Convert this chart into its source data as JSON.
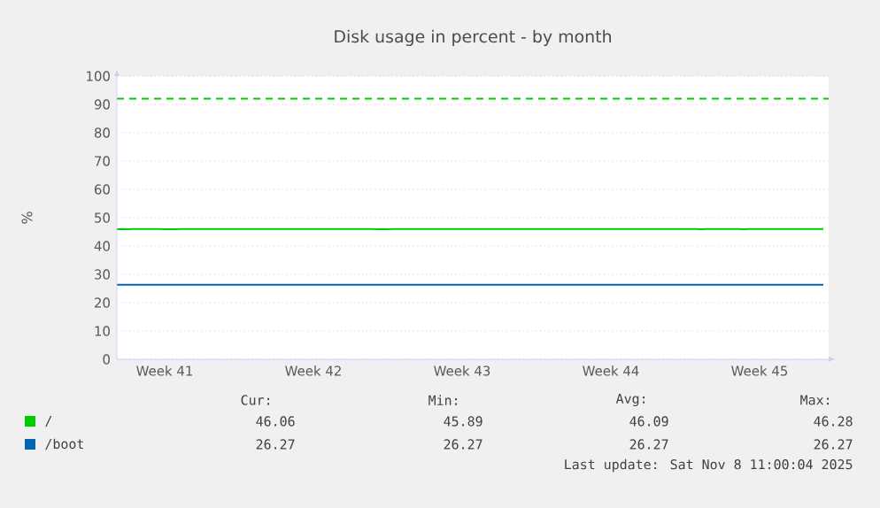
{
  "chart_data": {
    "type": "line",
    "title": "Disk usage in percent - by month",
    "ylabel": "%",
    "categories": [
      null,
      null,
      null,
      null,
      null,
      null,
      null,
      null,
      null,
      "Week 41",
      null,
      null,
      null,
      null,
      null,
      null,
      null,
      null,
      null,
      null,
      null,
      null,
      null,
      null,
      null,
      null,
      null,
      null,
      null,
      null,
      null,
      null,
      null,
      null,
      null,
      null,
      null,
      "Week 42",
      null,
      null,
      null,
      null,
      null,
      null,
      null,
      null,
      null,
      null,
      null,
      null,
      null,
      null,
      null,
      null,
      null,
      null,
      null,
      null,
      null,
      null,
      null,
      null,
      null,
      null,
      null,
      "Week 43",
      null,
      null,
      null,
      null,
      null,
      null,
      null,
      null,
      null,
      null,
      null,
      null,
      null,
      null,
      null,
      null,
      null,
      null,
      null,
      null,
      null,
      null,
      null,
      null,
      null,
      null,
      null,
      "Week 44",
      null,
      null,
      null,
      null,
      null,
      null,
      null,
      null,
      null,
      null,
      null,
      null,
      null,
      null,
      null,
      null,
      null,
      null,
      null,
      null,
      null,
      null,
      null,
      null,
      null,
      null,
      null,
      "Week 45",
      null,
      null,
      null,
      null,
      null,
      null,
      null,
      null,
      null,
      null,
      null,
      null
    ],
    "ylim": [
      0,
      100
    ],
    "yticks": [
      0,
      10,
      20,
      30,
      40,
      50,
      60,
      70,
      80,
      90,
      100
    ],
    "grid": "y",
    "legend": "bottom",
    "line_style": "solid",
    "series": [
      {
        "name": "/",
        "color": "#00cc00",
        "values": [
          45.9,
          46,
          45.9,
          46,
          46,
          46,
          46,
          46,
          46,
          45.9,
          45.9,
          45.9,
          46,
          46,
          46,
          46,
          46,
          46,
          46,
          46,
          46,
          46,
          46,
          46,
          46,
          46,
          46,
          46,
          46,
          46,
          46,
          46,
          46,
          46,
          46,
          46,
          46,
          46,
          46,
          46,
          46,
          46,
          46,
          46,
          46,
          46,
          46,
          46,
          46,
          45.9,
          46,
          45.9,
          46,
          46,
          46,
          46,
          46,
          46,
          46,
          46,
          46,
          46,
          46,
          46,
          46,
          46,
          46,
          46,
          46,
          46,
          46,
          46,
          46,
          46,
          46,
          46,
          46,
          46,
          46,
          46,
          46,
          46,
          46,
          46,
          46,
          46,
          46,
          46,
          46,
          46,
          46,
          46,
          46,
          46,
          46,
          46,
          46,
          46,
          46,
          46,
          46,
          46,
          46,
          46,
          46,
          46,
          46,
          46,
          46,
          46,
          45.9,
          46,
          46,
          46,
          46,
          46,
          46,
          46,
          45.9,
          46,
          46,
          46,
          46,
          46,
          46,
          46,
          46,
          46,
          46,
          46,
          46,
          46,
          46,
          46
        ]
      },
      {
        "name": "/boot",
        "color": "#0066b3",
        "values": [
          26.3,
          26.3,
          26.3,
          26.3,
          26.3,
          26.3,
          26.3,
          26.3,
          26.3,
          26.3,
          26.3,
          26.3,
          26.3,
          26.3,
          26.3,
          26.3,
          26.3,
          26.3,
          26.3,
          26.3,
          26.3,
          26.3,
          26.3,
          26.3,
          26.3,
          26.3,
          26.3,
          26.3,
          26.3,
          26.3,
          26.3,
          26.3,
          26.3,
          26.3,
          26.3,
          26.3,
          26.3,
          26.3,
          26.3,
          26.3,
          26.3,
          26.3,
          26.3,
          26.3,
          26.3,
          26.3,
          26.3,
          26.3,
          26.3,
          26.3,
          26.3,
          26.3,
          26.3,
          26.3,
          26.3,
          26.3,
          26.3,
          26.3,
          26.3,
          26.3,
          26.3,
          26.3,
          26.3,
          26.3,
          26.3,
          26.3,
          26.3,
          26.3,
          26.3,
          26.3,
          26.3,
          26.3,
          26.3,
          26.3,
          26.3,
          26.3,
          26.3,
          26.3,
          26.3,
          26.3,
          26.3,
          26.3,
          26.3,
          26.3,
          26.3,
          26.3,
          26.3,
          26.3,
          26.3,
          26.3,
          26.3,
          26.3,
          26.3,
          26.3,
          26.3,
          26.3,
          26.3,
          26.3,
          26.3,
          26.3,
          26.3,
          26.3,
          26.3,
          26.3,
          26.3,
          26.3,
          26.3,
          26.3,
          26.3,
          26.3,
          26.3,
          26.3,
          26.3,
          26.3,
          26.3,
          26.3,
          26.3,
          26.3,
          26.3,
          26.3,
          26.3,
          26.3,
          26.3,
          26.3,
          26.3,
          26.3,
          26.3,
          26.3,
          26.3,
          26.3,
          26.3,
          26.3,
          26.3,
          26.3
        ]
      }
    ],
    "ref_lines": [
      {
        "axis": "y",
        "value": 92,
        "color": "#00cc00",
        "line_style": "dashed"
      }
    ],
    "annotations": [
      "Cur:",
      "Min:",
      "Avg:",
      "Max:",
      "46.06",
      "45.89",
      "46.09",
      "46.28",
      "26.27",
      "26.27",
      "26.27",
      "26.27",
      "Last update: Sat Nov  8 11:00:04 2025"
    ]
  }
}
